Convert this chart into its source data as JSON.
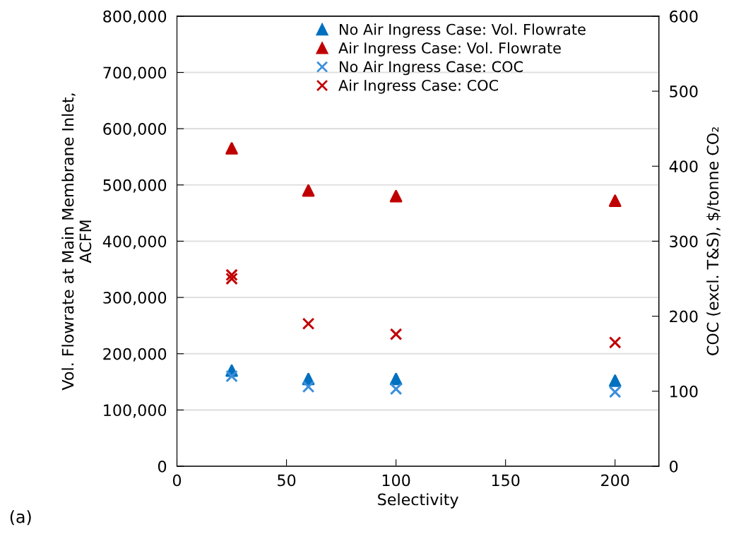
{
  "chart_data": {
    "type": "scatter",
    "xlabel": "Selectivity",
    "ylabel": "Vol. Flowrate at Main Membrane Inlet,\nACFM",
    "y2label": "COC (excl. T&S), $/tonne CO₂",
    "annotations": [
      "(a)"
    ],
    "xlim": [
      0,
      220
    ],
    "xticks": [
      0,
      50,
      100,
      150,
      200
    ],
    "ylim": [
      0,
      800000
    ],
    "yticks": [
      {
        "value": 0,
        "label": "0"
      },
      {
        "value": 100000,
        "label": "100,000"
      },
      {
        "value": 200000,
        "label": "200,000"
      },
      {
        "value": 300000,
        "label": "300,000"
      },
      {
        "value": 400000,
        "label": "400,000"
      },
      {
        "value": 500000,
        "label": "500,000"
      },
      {
        "value": 600000,
        "label": "600,000"
      },
      {
        "value": 700000,
        "label": "700,000"
      },
      {
        "value": 800000,
        "label": "800,000"
      }
    ],
    "y2lim": [
      0,
      600
    ],
    "y2ticks": [
      0,
      100,
      200,
      300,
      400,
      500,
      600
    ],
    "grid": "y",
    "legend": "top",
    "series": [
      {
        "name": "No Air Ingress Case: Vol. Flowrate",
        "color": "#0070c0",
        "marker": "triangle",
        "x": [
          25,
          60,
          100,
          200
        ],
        "values": [
          170000,
          155000,
          155000,
          152000
        ]
      },
      {
        "name": "Air Ingress Case: Vol. Flowrate",
        "color": "#c00000",
        "marker": "triangle",
        "x": [
          25,
          60,
          100,
          200
        ],
        "values": [
          565000,
          490000,
          480000,
          472000
        ]
      },
      {
        "name": "No Air Ingress Case: COC",
        "color": "#3c8fdc",
        "marker": "cross",
        "axis": "y2",
        "x": [
          25,
          60,
          100,
          200
        ],
        "values": [
          120,
          106,
          103,
          99
        ]
      },
      {
        "name": "Air Ingress Case: COC",
        "color": "#c00000",
        "marker": "cross",
        "axis": "y2",
        "x": [
          25,
          25,
          60,
          100,
          200
        ],
        "values": [
          255,
          250,
          190,
          176,
          165
        ]
      }
    ]
  }
}
